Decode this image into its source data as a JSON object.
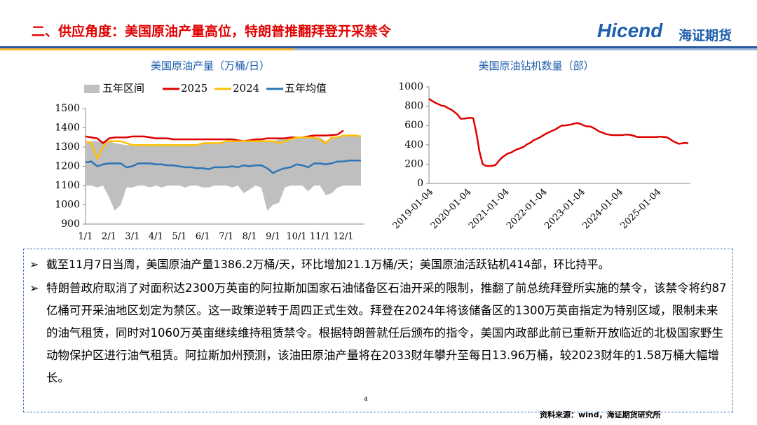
{
  "header": {
    "title": "二、供应角度：美国原油产量高位，特朗普推翻拜登开采禁令",
    "logo": "Hicend",
    "logo_cn": "海证期货"
  },
  "chart_data": [
    {
      "type": "line",
      "title": "美国原油产量（万桶/日）",
      "categories": [
        "1/1",
        null,
        null,
        null,
        "2/1",
        null,
        null,
        null,
        "3/1",
        null,
        null,
        null,
        "4/1",
        null,
        null,
        null,
        "5/1",
        null,
        null,
        null,
        "6/1",
        null,
        null,
        null,
        "7/1",
        null,
        null,
        null,
        "8/1",
        null,
        null,
        null,
        "9/1",
        null,
        null,
        null,
        "10/1",
        null,
        null,
        null,
        "11/1",
        null,
        null,
        null,
        "12/1",
        null,
        null,
        null
      ],
      "ylim": [
        900,
        1500
      ],
      "yticks": [
        900,
        1000,
        1100,
        1200,
        1300,
        1400,
        1500
      ],
      "legend": "top",
      "series": [
        {
          "name": "五年区间",
          "color": "#bfbfbf",
          "values": [
            1320,
            1330,
            1330,
            1330,
            1330,
            1320,
            1315,
            1310,
            1310,
            1310,
            1310,
            1310,
            1310,
            1310,
            1310,
            1310,
            1310,
            1310,
            1315,
            1315,
            1320,
            1320,
            1320,
            1325,
            1330,
            1330,
            1330,
            1330,
            1335,
            1340,
            1340,
            1330,
            1330,
            1340,
            1340,
            1345,
            1350,
            1350,
            1350,
            1350,
            1350,
            1330,
            1350,
            1350,
            1360,
            1360,
            1360,
            1360
          ],
          "low": [
            1100,
            1100,
            1090,
            1100,
            1040,
            970,
            1000,
            1090,
            1090,
            1100,
            1100,
            1090,
            1100,
            1090,
            1100,
            1100,
            1100,
            1090,
            1100,
            1100,
            1090,
            1090,
            1100,
            1100,
            1100,
            1090,
            1100,
            1060,
            1080,
            1100,
            1090,
            970,
            1000,
            1010,
            1090,
            1100,
            1100,
            1100,
            1070,
            1100,
            1100,
            1050,
            1060,
            1090,
            1100,
            1100,
            1100,
            1100
          ]
        },
        {
          "name": "2025",
          "color": "#e00000",
          "values": [
            1355,
            1350,
            1345,
            1320,
            1345,
            1350,
            1350,
            1350,
            1355,
            1355,
            1355,
            1350,
            1345,
            1345,
            1345,
            1340,
            1340,
            1340,
            1340,
            1340,
            1340,
            1340,
            1340,
            1340,
            1340,
            1340,
            1335,
            1330,
            1335,
            1340,
            1340,
            1345,
            1345,
            1345,
            1345,
            1350,
            1350,
            1350,
            1355,
            1360,
            1360,
            1360,
            1362,
            1365,
            1386,
            null,
            null,
            null
          ]
        },
        {
          "name": "2024",
          "color": "#ffc000",
          "values": [
            1330,
            1320,
            1240,
            1300,
            1330,
            1330,
            1330,
            1320,
            1310,
            1310,
            1310,
            1310,
            1310,
            1310,
            1310,
            1310,
            1310,
            1310,
            1310,
            1310,
            1320,
            1320,
            1320,
            1320,
            1330,
            1330,
            1330,
            1330,
            1330,
            1330,
            1330,
            1330,
            1330,
            1320,
            1330,
            1340,
            1350,
            1350,
            1350,
            1350,
            1340,
            1320,
            1350,
            1350,
            1360,
            1360,
            1360,
            1355
          ]
        },
        {
          "name": "五年均值",
          "color": "#2e75b6",
          "values": [
            1220,
            1225,
            1200,
            1210,
            1215,
            1215,
            1215,
            1195,
            1200,
            1215,
            1215,
            1215,
            1210,
            1210,
            1205,
            1205,
            1200,
            1195,
            1195,
            1190,
            1190,
            1185,
            1195,
            1195,
            1195,
            1200,
            1195,
            1205,
            1200,
            1205,
            1205,
            1190,
            1165,
            1180,
            1190,
            1195,
            1210,
            1205,
            1195,
            1215,
            1215,
            1210,
            1215,
            1225,
            1225,
            1230,
            1230,
            1230
          ]
        }
      ]
    },
    {
      "type": "line",
      "title": "美国原油钻机数量（部）",
      "categories": [
        "2019-01-04",
        null,
        null,
        null,
        null,
        null,
        null,
        null,
        null,
        null,
        null,
        null,
        "2020-01-04",
        null,
        null,
        null,
        null,
        null,
        null,
        null,
        null,
        null,
        null,
        null,
        "2021-01-04",
        null,
        null,
        null,
        null,
        null,
        null,
        null,
        null,
        null,
        null,
        null,
        "2022-01-04",
        null,
        null,
        null,
        null,
        null,
        null,
        null,
        null,
        null,
        null,
        null,
        "2023-01-04",
        null,
        null,
        null,
        null,
        null,
        null,
        null,
        null,
        null,
        null,
        null,
        "2024-01-04",
        null,
        null,
        null,
        null,
        null,
        null,
        null,
        null,
        null,
        null,
        null,
        "2025-01-04",
        null,
        null,
        null,
        null,
        null,
        null,
        null,
        null,
        null,
        null
      ],
      "ylim": [
        0,
        1000
      ],
      "yticks": [
        0,
        200,
        400,
        600,
        800,
        1000
      ],
      "series": [
        {
          "color": "#e00000",
          "values": [
            875,
            855,
            835,
            820,
            805,
            800,
            780,
            765,
            740,
            715,
            670,
            670,
            675,
            680,
            675,
            520,
            325,
            200,
            182,
            180,
            183,
            190,
            230,
            265,
            290,
            310,
            320,
            340,
            355,
            365,
            380,
            405,
            420,
            445,
            460,
            475,
            495,
            515,
            530,
            545,
            560,
            580,
            600,
            600,
            605,
            610,
            620,
            625,
            615,
            600,
            590,
            590,
            575,
            555,
            535,
            525,
            510,
            505,
            500,
            500,
            500,
            500,
            505,
            505,
            500,
            490,
            480,
            480,
            480,
            480,
            480,
            480,
            480,
            485,
            480,
            480,
            465,
            440,
            425,
            410,
            415,
            420,
            414
          ]
        }
      ]
    }
  ],
  "bullets": [
    "截至11月7日当周，美国原油产量1386.2万桶/天，环比增加21.1万桶/天；美国原油活跃钻机414部，环比持平。",
    "特朗普政府取消了对面积达2300万英亩的阿拉斯加国家石油储备区石油开采的限制，推翻了前总统拜登所实施的禁令，该禁令将约87亿桶可开采油地区划定为禁区。这一政策逆转于周四正式生效。拜登在2024年将该储备区的1300万英亩指定为特别区域，限制未来的油气租赁，同时对1060万英亩继续维持租赁禁令。根据特朗普就任后颁布的指令，美国内政部此前已重新开放临近的北极国家野生动物保护区进行油气租赁。阿拉斯加州预测，该油田原油产量将在2033财年攀升至每日13.96万桶，较2023财年的1.58万桶大幅增长。"
  ],
  "page_number": "4",
  "source": "资料来源：wind，海证期货研究所"
}
